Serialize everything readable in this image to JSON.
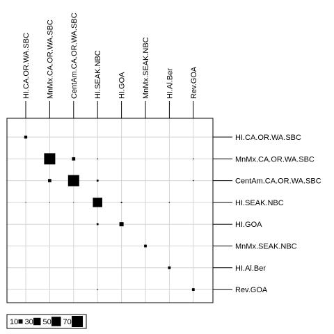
{
  "chart_data": {
    "type": "heatmap",
    "x_categories": [
      "HI.CA.OR.WA.SBC",
      "MnMx.CA.OR.WA.SBC",
      "CentAm.CA.OR.WA.SBC",
      "HI.SEAK.NBC",
      "HI.GOA",
      "MnMx.SEAK.NBC",
      "HI.Al.Ber",
      "Rev.GOA"
    ],
    "y_categories": [
      "HI.CA.OR.WA.SBC",
      "MnMx.CA.OR.WA.SBC",
      "CentAm.CA.OR.WA.SBC",
      "HI.SEAK.NBC",
      "HI.GOA",
      "MnMx.SEAK.NBC",
      "HI.Al.Ber",
      "Rev.GOA"
    ],
    "encoding": "square area proportional to value",
    "values": [
      [
        5,
        0,
        0,
        0,
        0,
        0,
        0,
        0
      ],
      [
        0,
        70,
        6,
        0.5,
        0,
        0,
        0,
        0.5
      ],
      [
        0,
        6,
        70,
        2,
        0,
        0,
        0,
        0.5
      ],
      [
        0.3,
        0.3,
        0.3,
        50,
        1,
        0,
        0.5,
        0
      ],
      [
        0,
        0,
        0,
        2,
        10,
        0,
        0,
        0
      ],
      [
        0,
        0,
        0,
        0,
        0,
        4,
        0,
        0
      ],
      [
        0,
        0,
        0,
        0,
        0,
        0,
        4,
        0
      ],
      [
        0,
        0,
        0,
        0.5,
        0,
        0,
        0,
        4
      ]
    ],
    "legend": {
      "placement": "bottom-left",
      "entries": [
        {
          "label": "10",
          "value": 10
        },
        {
          "label": "30",
          "value": 30
        },
        {
          "label": "50",
          "value": 50
        },
        {
          "label": "70",
          "value": 70
        }
      ]
    },
    "grid": true,
    "colors": {
      "mark": "#000000",
      "grid": "#d3d3d3",
      "frame": "#000000",
      "background": "#ffffff"
    }
  }
}
